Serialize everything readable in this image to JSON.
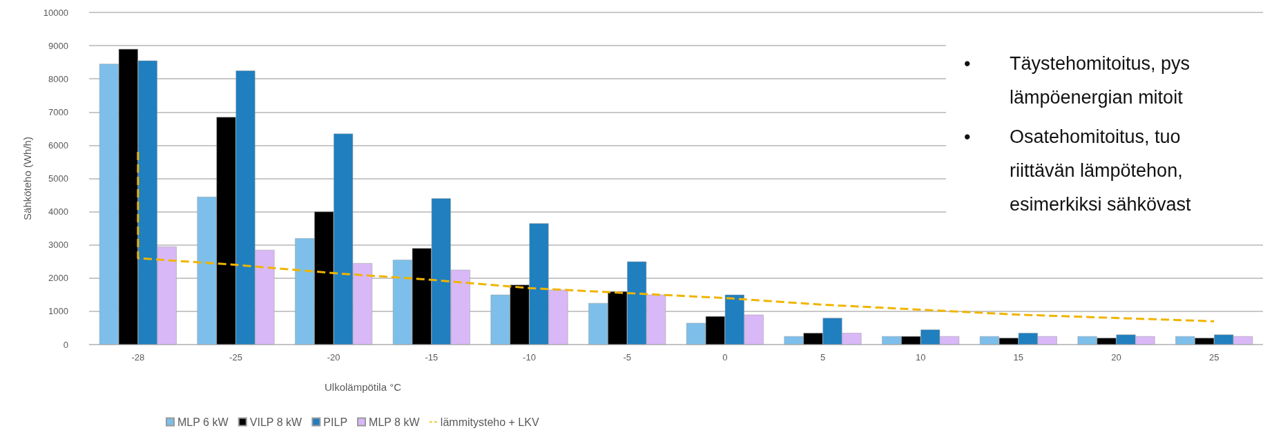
{
  "chart_data": {
    "type": "bar",
    "xlabel": "Ulkolämpötila °C",
    "ylabel": "Sähköteho (Wh/h)",
    "categories": [
      "-28",
      "-25",
      "-20",
      "-15",
      "-10",
      "-5",
      "0",
      "5",
      "10",
      "15",
      "20",
      "25"
    ],
    "series": [
      {
        "name": "MLP 6 kW",
        "color": "#7dbfea",
        "values": [
          8450,
          4450,
          3200,
          2550,
          1500,
          1250,
          650,
          250,
          250,
          250,
          250,
          250
        ]
      },
      {
        "name": "VILP 8 kW",
        "color": "#000000",
        "values": [
          8900,
          6850,
          4000,
          2900,
          1800,
          1600,
          850,
          350,
          250,
          200,
          200,
          200
        ]
      },
      {
        "name": "PILP",
        "color": "#1f7fbf",
        "values": [
          8550,
          8250,
          6350,
          4400,
          3650,
          2500,
          1500,
          800,
          450,
          350,
          300,
          300
        ]
      },
      {
        "name": "MLP 8 kW",
        "color": "#d9b8f7",
        "values": [
          2950,
          2850,
          2450,
          2250,
          1650,
          1500,
          900,
          350,
          250,
          250,
          250,
          250
        ]
      },
      {
        "name": "lämmitysteho + LKV",
        "type": "line",
        "color": "#f0b400",
        "line_style": "dashed",
        "marker": "none",
        "x": [
          "-28",
          "-28",
          "-25",
          "-20",
          "-15",
          "-10",
          "-5",
          "0",
          "5",
          "10",
          "15",
          "20",
          "25"
        ],
        "values": [
          5800,
          2600,
          2400,
          2150,
          1950,
          1700,
          1550,
          1400,
          1200,
          1050,
          900,
          800,
          700
        ]
      }
    ],
    "ylim": [
      0,
      10000
    ],
    "yticks": [
      0,
      1000,
      2000,
      3000,
      4000,
      5000,
      6000,
      7000,
      8000,
      9000,
      10000
    ],
    "grid": "y",
    "legend": "bottom",
    "annotations": [
      "•\tTäystehomitoitus, pys\nlämpöenergian mitoit",
      "•\tOsatehomitoitus, tuo\nriittävän lämpötehon,\nesimerkiksi sähkövast"
    ]
  }
}
